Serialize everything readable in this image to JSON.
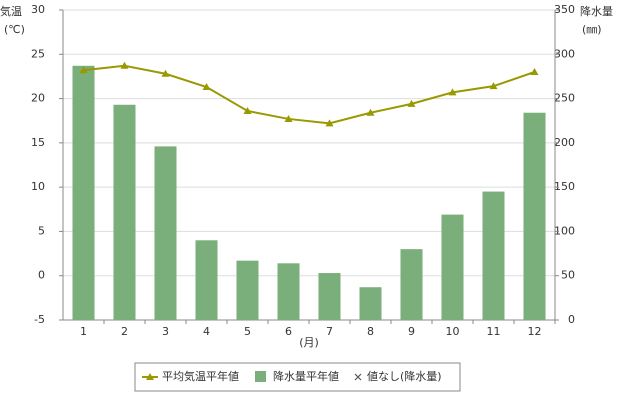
{
  "chart_data": {
    "type": "bar",
    "y_label": "気温",
    "y_unit": "(℃)",
    "y2_label": "降水量",
    "y2_unit": "(㎜)",
    "x_label": "(月)",
    "categories": [
      "1",
      "2",
      "3",
      "4",
      "5",
      "6",
      "7",
      "8",
      "9",
      "10",
      "11",
      "12"
    ],
    "series": [
      {
        "name": "平均気温平年値",
        "type": "line",
        "color": "#999900",
        "values": [
          23.2,
          23.7,
          22.8,
          21.3,
          18.6,
          17.7,
          17.2,
          18.4,
          19.4,
          20.7,
          21.4,
          23.0
        ]
      },
      {
        "name": "降水量平年値",
        "type": "bar",
        "axis": "y2",
        "color": "#7aae7a",
        "values": [
          287,
          243,
          196,
          90,
          67,
          64,
          53,
          37,
          80,
          119,
          145,
          234
        ]
      }
    ],
    "legend_note": "値なし(降水量)",
    "ylim": [
      -5,
      30
    ],
    "yticks": [
      -5,
      0,
      5,
      10,
      15,
      20,
      25,
      30
    ],
    "y2lim": [
      0,
      350
    ],
    "y2ticks": [
      0,
      50,
      100,
      150,
      200,
      250,
      300,
      350
    ],
    "grid": true
  }
}
